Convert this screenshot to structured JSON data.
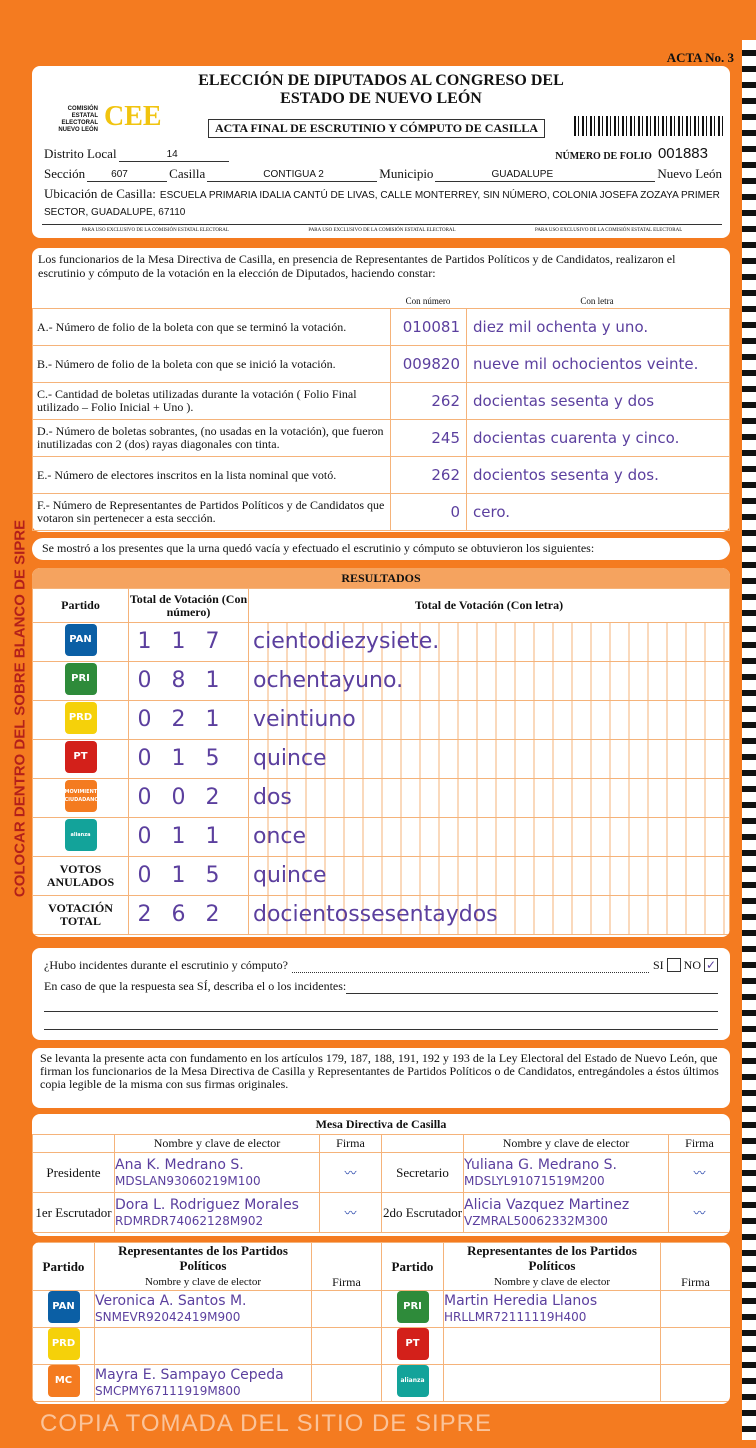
{
  "acta_no": "ACTA No. 3",
  "title1": "ELECCIÓN DE DIPUTADOS AL CONGRESO DEL",
  "title2": "ESTADO DE NUEVO LEÓN",
  "logo": {
    "org": "COMISIÓN ESTATAL ELECTORAL NUEVO LEÓN",
    "mark": "CEE"
  },
  "subtitle": "ACTA FINAL DE ESCRUTINIO Y CÓMPUTO DE CASILLA",
  "folio_label": "NÚMERO DE FOLIO",
  "folio": "001883",
  "distrito_label": "Distrito Local",
  "distrito": "14",
  "seccion_label": "Sección",
  "seccion": "607",
  "casilla_label": "Casilla",
  "casilla": "CONTIGUA 2",
  "municipio_label": "Municipio",
  "municipio": "GUADALUPE",
  "estado": "Nuevo León",
  "ubicacion_label": "Ubicación de Casilla:",
  "ubicacion": "ESCUELA PRIMARIA IDALIA CANTÚ DE LIVAS, CALLE MONTERREY, SIN NÚMERO, COLONIA JOSEFA ZOZAYA PRIMER SECTOR, GUADALUPE, 67110",
  "uso_exclusivo": "PARA USO EXCLUSIVO DE LA COMISIÓN ESTATAL ELECTORAL",
  "intro": "Los funcionarios de la Mesa Directiva de Casilla, en presencia de Representantes de Partidos Políticos y de Candidatos, realizaron el escrutinio y cómputo de la votación en la elección de Diputados, haciendo constar:",
  "col_numero": "Con número",
  "col_letra": "Con letra",
  "items": [
    {
      "label": "A.- Número de folio de la boleta con que se terminó la votación.",
      "num": "010081",
      "letra": "diez mil ochenta y uno."
    },
    {
      "label": "B.- Número de folio de la boleta con que se inició la votación.",
      "num": "009820",
      "letra": "nueve mil ochocientos veinte."
    },
    {
      "label": "C.- Cantidad de boletas utilizadas durante la votación ( Folio Final utilizado – Folio Inicial + Uno ).",
      "num": "262",
      "letra": "docientas sesenta y dos"
    },
    {
      "label": "D.- Número de boletas sobrantes, (no usadas en la votación), que fueron inutilizadas con 2 (dos) rayas diagonales con tinta.",
      "num": "245",
      "letra": "docientas cuarenta y cinco."
    },
    {
      "label": "E.- Número de electores inscritos en la lista nominal que votó.",
      "num": "262",
      "letra": "docientos sesenta y dos."
    },
    {
      "label": "F.- Número de Representantes de Partidos Políticos y de Candidatos que votaron sin pertenecer a esta sección.",
      "num": "0",
      "letra": "cero."
    }
  ],
  "urna_text": "Se mostró a los presentes que la urna quedó vacía y efectuado el escrutinio y cómputo se obtuvieron los siguientes:",
  "resultados_title": "RESULTADOS",
  "res_headers": {
    "partido": "Partido",
    "numero": "Total de Votación (Con número)",
    "letra": "Total de Votación (Con letra)"
  },
  "resultados": [
    {
      "party": "PAN",
      "color": "#0b5fa5",
      "num": "117",
      "letra": "cientodiezysiete."
    },
    {
      "party": "PRI",
      "color": "#2e8b3a",
      "num": "081",
      "letra": "ochentayuno."
    },
    {
      "party": "PRD",
      "color": "#f5d10a",
      "num": "021",
      "letra": "veintiuno"
    },
    {
      "party": "PT",
      "color": "#d3201a",
      "num": "015",
      "letra": "quince"
    },
    {
      "party": "MOVIMIENTO CIUDADANO",
      "color": "#f47b20",
      "num": "002",
      "letra": "dos"
    },
    {
      "party": "alianza",
      "color": "#13a39a",
      "num": "011",
      "letra": "once"
    },
    {
      "party": "VOTOS ANULADOS",
      "num": "015",
      "letra": "quince"
    },
    {
      "party": "VOTACIÓN TOTAL",
      "num": "262",
      "letra": "docientossesentaydos"
    }
  ],
  "incidentes_q": "¿Hubo incidentes durante el escrutinio y cómputo?",
  "si": "SI",
  "no": "NO",
  "incidentes_answer": "NO",
  "incidentes_desc": "En caso de que la respuesta sea SÍ, describa el o los incidentes:",
  "legal": "Se levanta la presente acta con fundamento en los artículos 179, 187, 188, 191, 192 y 193 de la Ley Electoral del Estado de Nuevo León, que firman los funcionarios de la Mesa Directiva de Casilla y Representantes de Partidos Políticos o de Candidatos, entregándoles a éstos últimos copia legible de la misma con sus firmas originales.",
  "mesa": {
    "title": "Mesa Directiva de Casilla",
    "nombre_hdr": "Nombre y clave de elector",
    "firma_hdr": "Firma",
    "members": [
      {
        "role": "Presidente",
        "name": "Ana K. Medrano S.",
        "clave": "MDSLAN93060219M100"
      },
      {
        "role": "Secretario",
        "name": "Yuliana G. Medrano S.",
        "clave": "MDSLYL91071519M200"
      },
      {
        "role": "1er Escrutador",
        "name": "Dora L. Rodriguez Morales",
        "clave": "RDMRDR74062128M902"
      },
      {
        "role": "2do Escrutador",
        "name": "Alicia Vazquez Martinez",
        "clave": "VZMRAL50062332M300"
      }
    ]
  },
  "reps": {
    "partido_hdr": "Partido",
    "title": "Representantes de los Partidos Políticos",
    "nombre_hdr": "Nombre y clave de elector",
    "firma_hdr": "Firma",
    "left": [
      {
        "party": "PAN",
        "color": "#0b5fa5",
        "name": "Veronica A. Santos M.",
        "clave": "SNMEVR92042419M900"
      },
      {
        "party": "PRD",
        "color": "#f5d10a",
        "name": "",
        "clave": ""
      },
      {
        "party": "MC",
        "color": "#f47b20",
        "name": "Mayra E. Sampayo Cepeda",
        "clave": "SMCPMY67111919M800"
      }
    ],
    "right": [
      {
        "party": "PRI",
        "color": "#2e8b3a",
        "name": "Martin Heredia Llanos",
        "clave": "HRLLMR72111119H400"
      },
      {
        "party": "PT",
        "color": "#d3201a",
        "name": "",
        "clave": ""
      },
      {
        "party": "alianza",
        "color": "#13a39a",
        "name": "",
        "clave": ""
      }
    ]
  },
  "side_text": "COLOCAR DENTRO DEL SOBRE BLANCO DE SIPRE",
  "watermark": "COPIA TOMADA DEL SITIO DE SIPRE"
}
